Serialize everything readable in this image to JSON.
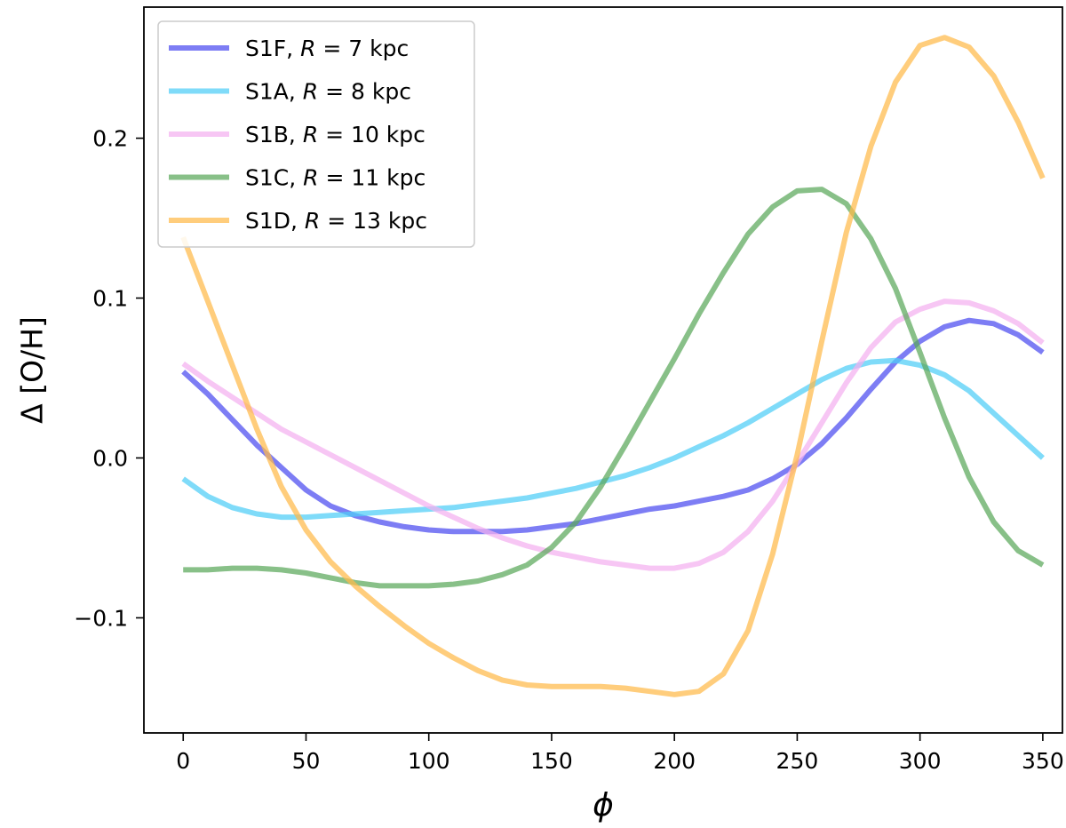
{
  "chart_data": {
    "type": "line",
    "title": "",
    "xlabel": "ϕ",
    "ylabel": "Δ [O/H]",
    "xlim": [
      -16,
      358
    ],
    "ylim": [
      -0.172,
      0.282
    ],
    "xticks": [
      0,
      50,
      100,
      150,
      200,
      250,
      300,
      350
    ],
    "xtick_labels": [
      "0",
      "50",
      "100",
      "150",
      "200",
      "250",
      "300",
      "350"
    ],
    "yticks": [
      -0.1,
      0.0,
      0.1,
      0.2
    ],
    "ytick_labels": [
      "−0.1",
      "0.0",
      "0.1",
      "0.2"
    ],
    "grid": false,
    "legend_position": "top-left",
    "x": [
      0,
      10,
      20,
      30,
      40,
      50,
      60,
      70,
      80,
      90,
      100,
      110,
      120,
      130,
      140,
      150,
      160,
      170,
      180,
      190,
      200,
      210,
      220,
      230,
      240,
      250,
      260,
      270,
      280,
      290,
      300,
      310,
      320,
      330,
      340,
      350
    ],
    "series": [
      {
        "name": "S1F",
        "radius": "7",
        "label_prefix": "S1F, ",
        "label_mid": " =  7 kpc",
        "color": "#4b4bf0",
        "values": [
          0.054,
          0.04,
          0.024,
          0.008,
          -0.006,
          -0.02,
          -0.03,
          -0.036,
          -0.04,
          -0.043,
          -0.045,
          -0.046,
          -0.046,
          -0.046,
          -0.045,
          -0.043,
          -0.041,
          -0.038,
          -0.035,
          -0.032,
          -0.03,
          -0.027,
          -0.024,
          -0.02,
          -0.013,
          -0.004,
          0.009,
          0.025,
          0.043,
          0.06,
          0.073,
          0.082,
          0.086,
          0.084,
          0.077,
          0.066
        ]
      },
      {
        "name": "S1A",
        "radius": "8",
        "label_prefix": "S1A, ",
        "label_mid": " =  8 kpc",
        "color": "#4dcdf7",
        "values": [
          -0.013,
          -0.024,
          -0.031,
          -0.035,
          -0.037,
          -0.037,
          -0.036,
          -0.035,
          -0.034,
          -0.033,
          -0.032,
          -0.031,
          -0.029,
          -0.027,
          -0.025,
          -0.022,
          -0.019,
          -0.015,
          -0.011,
          -0.006,
          0.0,
          0.007,
          0.014,
          0.022,
          0.031,
          0.04,
          0.049,
          0.056,
          0.06,
          0.061,
          0.058,
          0.052,
          0.042,
          0.028,
          0.014,
          0.0
        ]
      },
      {
        "name": "S1B",
        "radius": "10",
        "label_prefix": "S1B, ",
        "label_mid": " = 10 kpc",
        "color": "#f4b0f0",
        "values": [
          0.059,
          0.048,
          0.038,
          0.028,
          0.018,
          0.01,
          0.002,
          -0.006,
          -0.014,
          -0.022,
          -0.03,
          -0.037,
          -0.044,
          -0.05,
          -0.055,
          -0.059,
          -0.062,
          -0.065,
          -0.067,
          -0.069,
          -0.069,
          -0.066,
          -0.059,
          -0.046,
          -0.027,
          -0.003,
          0.022,
          0.047,
          0.069,
          0.085,
          0.093,
          0.098,
          0.097,
          0.092,
          0.084,
          0.072
        ]
      },
      {
        "name": "S1C",
        "radius": "11",
        "label_prefix": "S1C, ",
        "label_mid": " = 11 kpc",
        "color": "#5aa85a",
        "values": [
          -0.07,
          -0.07,
          -0.069,
          -0.069,
          -0.07,
          -0.072,
          -0.075,
          -0.078,
          -0.08,
          -0.08,
          -0.08,
          -0.079,
          -0.077,
          -0.073,
          -0.067,
          -0.056,
          -0.04,
          -0.018,
          0.008,
          0.035,
          0.062,
          0.09,
          0.116,
          0.14,
          0.157,
          0.167,
          0.168,
          0.159,
          0.137,
          0.106,
          0.066,
          0.025,
          -0.012,
          -0.04,
          -0.058,
          -0.067
        ]
      },
      {
        "name": "S1D",
        "radius": "13",
        "label_prefix": "S1D, ",
        "label_mid": " = 13 kpc",
        "color": "#ffba4a",
        "values": [
          0.138,
          0.098,
          0.058,
          0.018,
          -0.018,
          -0.045,
          -0.065,
          -0.08,
          -0.093,
          -0.105,
          -0.116,
          -0.125,
          -0.133,
          -0.139,
          -0.142,
          -0.143,
          -0.143,
          -0.143,
          -0.144,
          -0.146,
          -0.148,
          -0.146,
          -0.135,
          -0.108,
          -0.06,
          0.002,
          0.073,
          0.141,
          0.195,
          0.235,
          0.258,
          0.263,
          0.257,
          0.239,
          0.21,
          0.175
        ]
      }
    ]
  }
}
